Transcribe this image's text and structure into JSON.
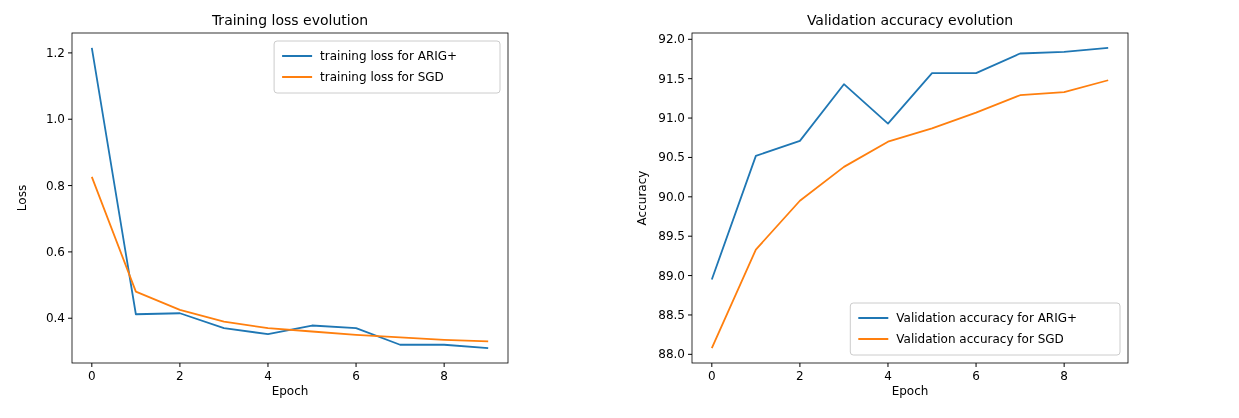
{
  "chart_data": [
    {
      "type": "line",
      "title": "Training loss evolution",
      "xlabel": "Epoch",
      "ylabel": "Loss",
      "x": [
        0,
        1,
        2,
        3,
        4,
        5,
        6,
        7,
        8,
        9
      ],
      "xlim": [
        -0.45,
        9.45
      ],
      "xticks": [
        0,
        2,
        4,
        6,
        8
      ],
      "ylim": [
        0.265,
        1.26
      ],
      "yticks": [
        {
          "value": 0.4,
          "label": "0.4"
        },
        {
          "value": 0.6,
          "label": "0.6"
        },
        {
          "value": 0.8,
          "label": "0.8"
        },
        {
          "value": 1.0,
          "label": "1.0"
        },
        {
          "value": 1.2,
          "label": "1.2"
        }
      ],
      "legend": "top right",
      "grid": false,
      "series": [
        {
          "name": "training loss for ARIG+",
          "color": "#1f77b4",
          "values": [
            1.215,
            0.412,
            0.415,
            0.37,
            0.352,
            0.378,
            0.37,
            0.32,
            0.32,
            0.31
          ]
        },
        {
          "name": "training loss for SGD",
          "color": "#ff7f0e",
          "values": [
            0.826,
            0.48,
            0.425,
            0.39,
            0.37,
            0.36,
            0.35,
            0.342,
            0.335,
            0.33
          ]
        }
      ]
    },
    {
      "type": "line",
      "title": "Validation accuracy evolution",
      "xlabel": "Epoch",
      "ylabel": "Accuracy",
      "x": [
        0,
        1,
        2,
        3,
        4,
        5,
        6,
        7,
        8,
        9
      ],
      "xlim": [
        -0.45,
        9.45
      ],
      "xticks": [
        0,
        2,
        4,
        6,
        8
      ],
      "ylim": [
        87.89,
        92.08
      ],
      "yticks": [
        {
          "value": 88,
          "label": "88.0"
        },
        {
          "value": 88.5,
          "label": "88.5"
        },
        {
          "value": 89,
          "label": "89.0"
        },
        {
          "value": 89.5,
          "label": "89.5"
        },
        {
          "value": 90,
          "label": "90.0"
        },
        {
          "value": 90.5,
          "label": "90.5"
        },
        {
          "value": 91,
          "label": "91.0"
        },
        {
          "value": 91.5,
          "label": "91.5"
        },
        {
          "value": 92,
          "label": "92.0"
        }
      ],
      "legend": "bottom right",
      "grid": false,
      "series": [
        {
          "name": "Validation accuracy for ARIG+",
          "color": "#1f77b4",
          "values": [
            88.95,
            90.52,
            90.71,
            91.43,
            90.93,
            91.57,
            91.57,
            91.82,
            91.84,
            91.89
          ]
        },
        {
          "name": "Validation accuracy for SGD",
          "color": "#ff7f0e",
          "values": [
            88.08,
            89.33,
            89.95,
            90.38,
            90.7,
            90.87,
            91.07,
            91.29,
            91.33,
            91.48
          ]
        }
      ]
    }
  ]
}
